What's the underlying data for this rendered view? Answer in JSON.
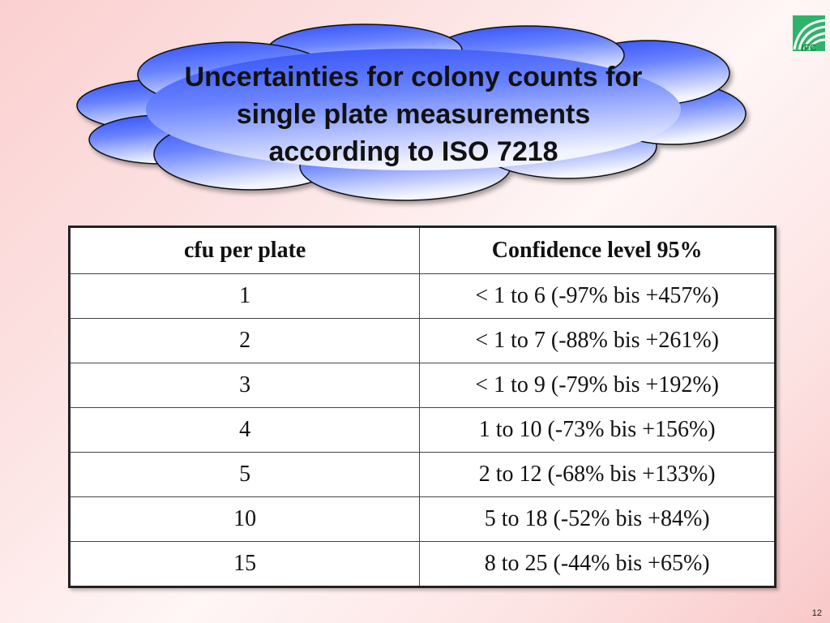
{
  "slide": {
    "title_lines": [
      "Uncertainties for colony counts for",
      "single plate measurements",
      "according to ISO 7218"
    ],
    "logo_text": "IFC",
    "page_number": "12"
  },
  "table": {
    "headers": [
      "cfu per plate",
      "Confidence level 95%"
    ],
    "rows": [
      [
        "1",
        "< 1 to 6   (-97% bis +457%)"
      ],
      [
        "2",
        "< 1 to 7  (-88% bis +261%)"
      ],
      [
        "3",
        "< 1 to 9  (-79% bis +192%)"
      ],
      [
        "4",
        "1 to 10  (-73% bis +156%)"
      ],
      [
        "5",
        "2 to 12 (-68% bis +133%)"
      ],
      [
        "10",
        "5 to 18 (-52% bis +84%)"
      ],
      [
        "15",
        "8 to 25  (-44% bis +65%)"
      ]
    ]
  },
  "colors": {
    "cloud_blue": "#3d5cff",
    "cloud_light": "#e8ecff",
    "logo_green": "#1a8a3a"
  }
}
